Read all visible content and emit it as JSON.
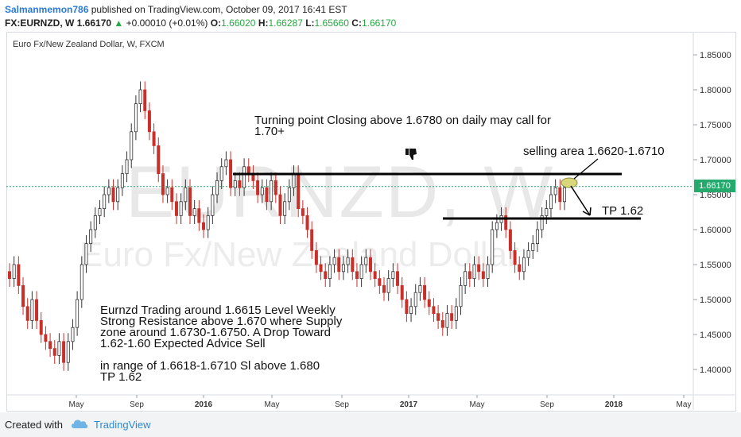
{
  "header": {
    "user": "Salmanmemon786",
    "published_text": " published on TradingView.com, October 09, 2017 16:41 EST",
    "symbol": "FX:EURNZD, W",
    "last_price": "1.66170",
    "change": "+0.00010 (+0.01%)",
    "open_label": "O:",
    "open": "1.66020",
    "high_label": "H:",
    "high": "1.66287",
    "low_label": "L:",
    "low": "1.65660",
    "close_label": "C:",
    "close": "1.66170"
  },
  "chart": {
    "symbol_title": "Euro Fx/New Zealand Dollar, W, FXCM",
    "watermark_ticker": "EURNZD, W",
    "watermark_name": "Euro Fx/New Zealand Dollar",
    "current_price_badge": "1.66170",
    "price_axis": [
      "1.85000",
      "1.80000",
      "1.75000",
      "1.70000",
      "1.65000",
      "1.60000",
      "1.55000",
      "1.50000",
      "1.45000",
      "1.40000"
    ],
    "time_axis": [
      "May",
      "Sep",
      "2016",
      "May",
      "Sep",
      "2017",
      "May",
      "Sep",
      "2018",
      "May"
    ],
    "colors": {
      "up": "#333333",
      "down": "#c8312b",
      "badge": "#26a96c",
      "grid": "#d7dbe0"
    }
  },
  "annotations": {
    "turning_point_line1": "Turning point Closing above 1.6780 on daily may call for",
    "turning_point_line2": "1.70+",
    "selling_area": "selling area 1.6620-1.6710",
    "tp": "TP 1.62",
    "analysis_line1": "Eurnzd Trading around 1.6615 Level Weekly",
    "analysis_line2": "Strong Resistance above 1.670 where Supply",
    "analysis_line3": "zone around 1.6730-1.6750. A Drop Toward",
    "analysis_line4": "1.62-1.60 Expected Advice Sell",
    "analysis_line5": "in range of 1.6618-1.6710 Sl above 1.680",
    "analysis_line6": "TP 1.62",
    "thumb_icon": "thumbs-down-icon"
  },
  "footer": {
    "created_with": "Created with",
    "brand": "TradingView"
  }
}
